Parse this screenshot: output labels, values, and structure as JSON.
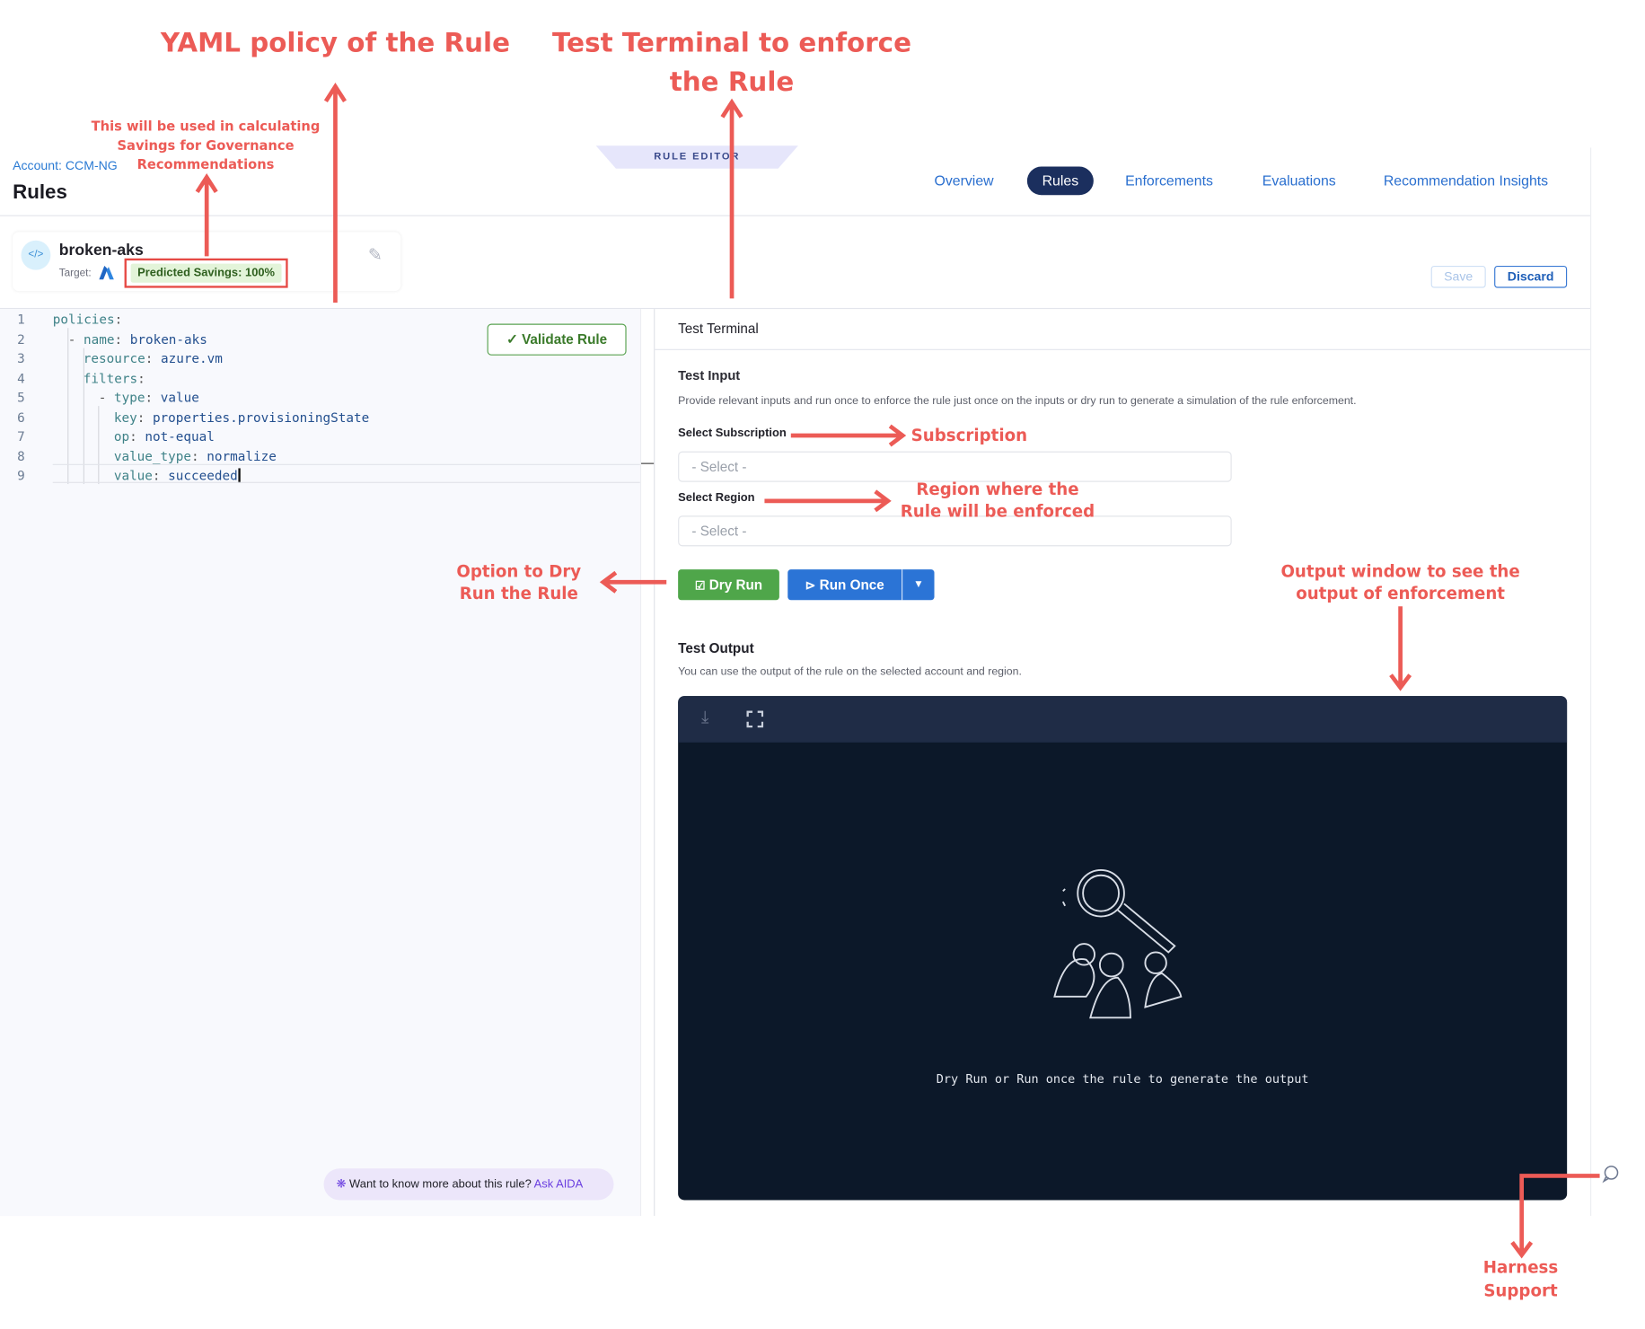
{
  "header": {
    "account": "Account: CCM-NG",
    "title": "Rules",
    "ribbon": "RULE EDITOR"
  },
  "nav": {
    "tabs": [
      {
        "label": "Overview"
      },
      {
        "label": "Rules",
        "active": true
      },
      {
        "label": "Enforcements"
      },
      {
        "label": "Evaluations"
      },
      {
        "label": "Recommendation Insights"
      }
    ]
  },
  "rule": {
    "name": "broken-aks",
    "target_label": "Target:",
    "target_icon": "azure-icon",
    "predicted_savings": "Predicted Savings: 100%"
  },
  "actions": {
    "save": "Save",
    "discard": "Discard"
  },
  "editor": {
    "validate": "Validate Rule",
    "lines": [
      {
        "n": "1",
        "key": "policies",
        "val": "",
        "prefix": ""
      },
      {
        "n": "2",
        "key": "name",
        "val": "broken-aks",
        "prefix": "- "
      },
      {
        "n": "3",
        "key": "resource",
        "val": "azure.vm",
        "prefix": ""
      },
      {
        "n": "4",
        "key": "filters",
        "val": "",
        "prefix": ""
      },
      {
        "n": "5",
        "key": "type",
        "val": "value",
        "prefix": "- "
      },
      {
        "n": "6",
        "key": "key",
        "val": "properties.provisioningState",
        "prefix": ""
      },
      {
        "n": "7",
        "key": "op",
        "val": "not-equal",
        "prefix": ""
      },
      {
        "n": "8",
        "key": "value_type",
        "val": "normalize",
        "prefix": ""
      },
      {
        "n": "9",
        "key": "value",
        "val": "succeeded",
        "prefix": ""
      }
    ],
    "aida_prompt": "Want to know more about this rule?",
    "aida_link": "Ask AIDA"
  },
  "terminal": {
    "title": "Test Terminal",
    "input_heading": "Test Input",
    "input_desc": "Provide relevant inputs and run once to enforce the rule just once on the inputs or dry run to generate a simulation of the rule enforcement.",
    "subscription_label": "Select Subscription",
    "subscription_placeholder": "- Select -",
    "region_label": "Select Region",
    "region_placeholder": "- Select -",
    "dry_run": "Dry Run",
    "run_once": "Run Once",
    "output_heading": "Test Output",
    "output_desc": "You can use the output of the rule on the selected account and region.",
    "empty_message": "Dry Run or Run once the rule to generate the output"
  },
  "annotations": {
    "yaml": "YAML policy of the Rule",
    "terminal_1": "Test Terminal to enforce",
    "terminal_2": "the Rule",
    "savings_1": "This will be used in calculating",
    "savings_2": "Savings for Governance",
    "savings_3": "Recommendations",
    "subscription": "Subscription",
    "region_1": "Region where the",
    "region_2": "Rule will be enforced",
    "dry_1": "Option to Dry",
    "dry_2": "Run the Rule",
    "output_1": "Output window to see the",
    "output_2": "output of enforcement",
    "support_1": "Harness",
    "support_2": "Support"
  },
  "colors": {
    "accent": "#2a6fcf",
    "nav_active": "#1b2f5e",
    "dry_run": "#4fa64a",
    "run_once": "#2b74d6",
    "annotation": "#ec5b56",
    "terminal_bg": "#0c1829"
  }
}
